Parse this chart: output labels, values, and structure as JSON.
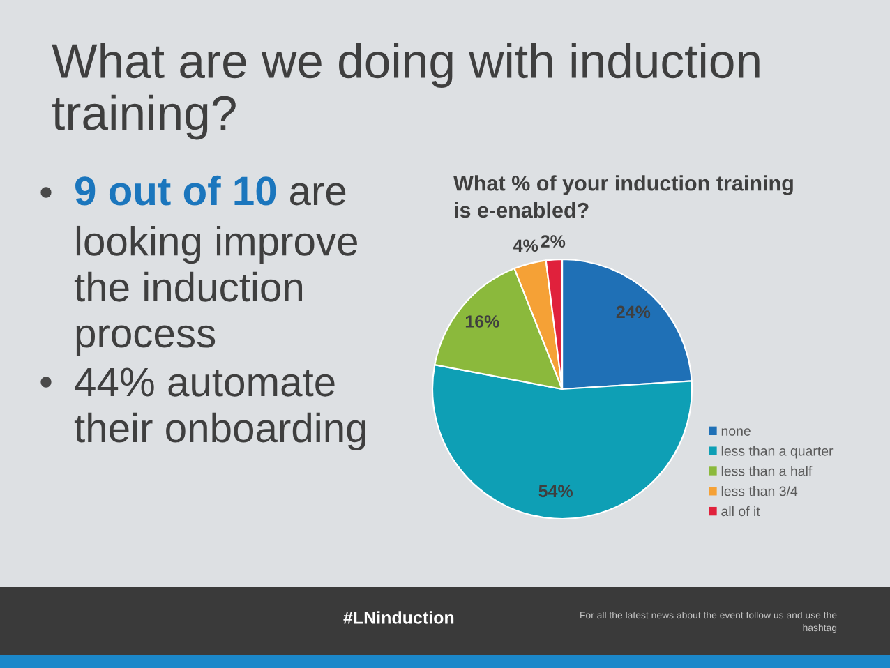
{
  "chart_data": {
    "type": "pie",
    "title": "What are we doing with induction training?",
    "subtitle": "What % of your induction training is e-enabled?",
    "categories": [
      "none",
      "less than a quarter",
      "less than a half",
      "less than 3/4",
      "all of it"
    ],
    "values": [
      24,
      54,
      16,
      4,
      2
    ],
    "colors": [
      "#1f70b6",
      "#0e9fb5",
      "#8bb93c",
      "#f5a136",
      "#e0213c"
    ],
    "value_labels": [
      "24%",
      "54%",
      "16%",
      "4%",
      "2%"
    ],
    "legend": "bottom right",
    "annotations": [
      "9 out of 10",
      "are",
      "looking improve the induction process",
      "44% automate their onboarding",
      "#LNinduction",
      "For all the latest news about the event follow us and use the hashtag"
    ]
  }
}
